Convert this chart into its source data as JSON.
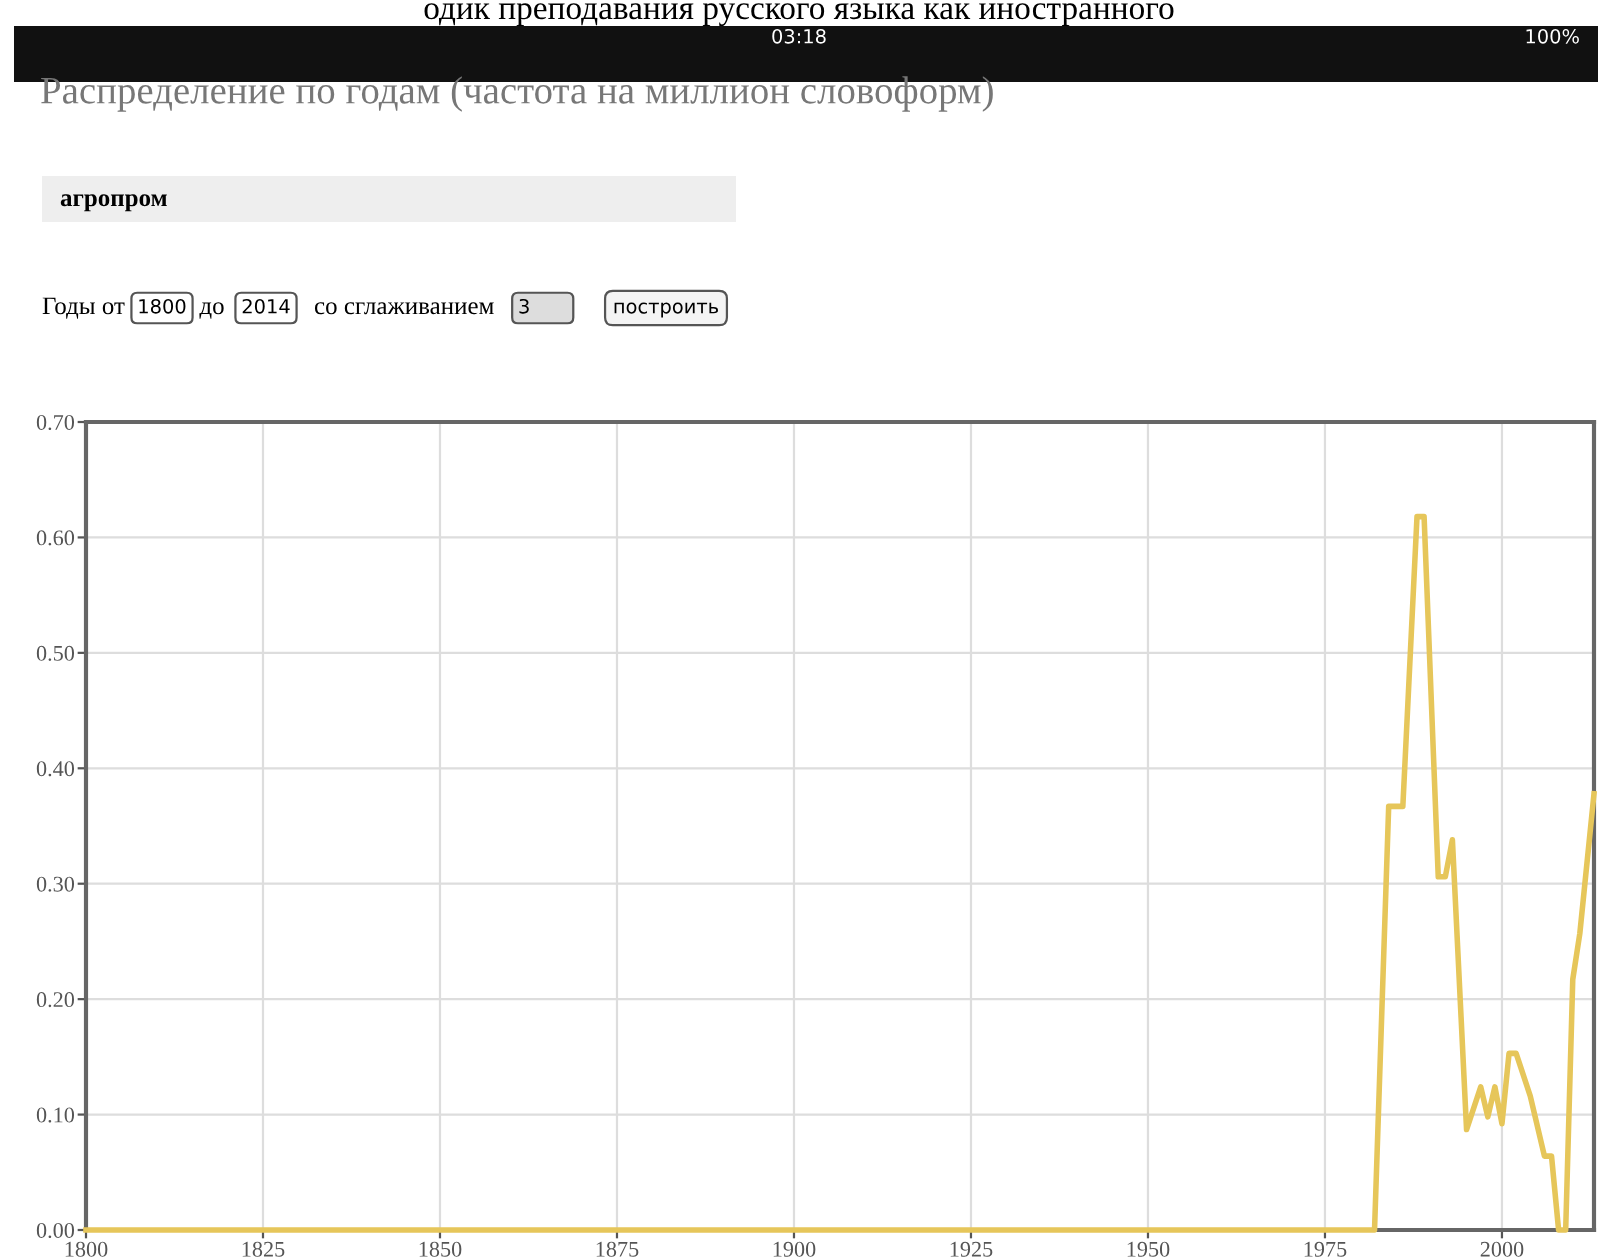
{
  "chart_data": {
    "type": "line",
    "title": "Распределение по годам (частота на миллион словоформ)",
    "annotations": [
      "одик преподавания русского языка как иностранного",
      "03:18",
      "100%",
      "агропром",
      "Годы от",
      "1800",
      "до",
      "2014",
      "со сглаживанием",
      "3",
      "построить"
    ],
    "series": [
      {
        "color": "#e6c65a",
        "x": [
          1800,
          1982,
          1984,
          1986,
          1988,
          1989,
          1991,
          1992,
          1993,
          1995,
          1997,
          1998,
          1999,
          2000,
          2001,
          2002,
          2004,
          2006,
          2007,
          2008,
          2009,
          2010,
          2011,
          2013
        ],
        "values": [
          0,
          0,
          0.367,
          0.367,
          0.618,
          0.618,
          0.306,
          0.306,
          0.338,
          0.087,
          0.124,
          0.098,
          0.124,
          0.092,
          0.153,
          0.153,
          0.116,
          0.064,
          0.064,
          0,
          0,
          0.217,
          0.257,
          0.378
        ]
      }
    ],
    "xlim": [
      1800,
      2013
    ],
    "ylim": [
      0,
      0.7
    ],
    "xticks": [
      1800,
      1825,
      1850,
      1875,
      1900,
      1925,
      1950,
      1975,
      2000
    ],
    "yticks": [
      {
        "value": 0,
        "label": "0.00"
      },
      {
        "value": 0.1,
        "label": "0.10"
      },
      {
        "value": 0.2,
        "label": "0.20"
      },
      {
        "value": 0.3,
        "label": "0.30"
      },
      {
        "value": 0.4,
        "label": "0.40"
      },
      {
        "value": 0.5,
        "label": "0.50"
      },
      {
        "value": 0.6,
        "label": "0.60"
      },
      {
        "value": 0.7,
        "label": "0.70"
      }
    ],
    "grid": true,
    "line_style": "solid"
  }
}
